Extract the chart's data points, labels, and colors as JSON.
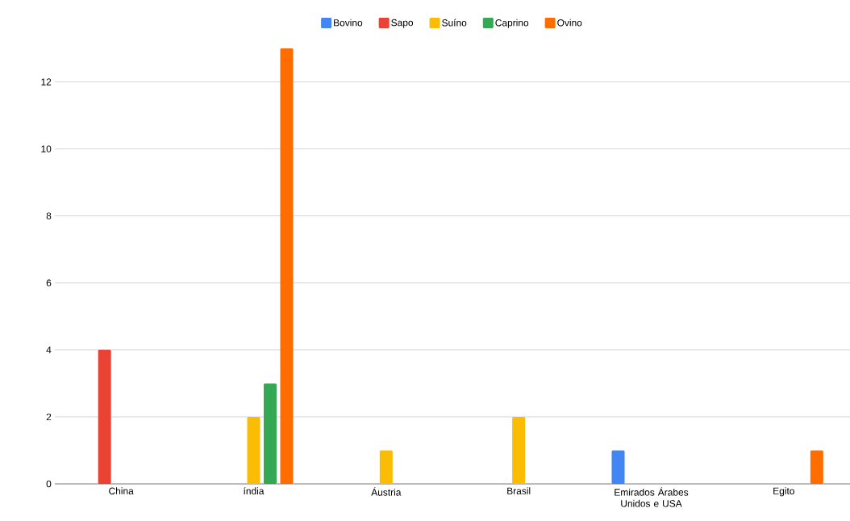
{
  "chart_data": {
    "type": "bar",
    "categories": [
      "China",
      "índia",
      "Áustria",
      "Brasil",
      "Emirados Árabes Unidos e USA",
      "Egito"
    ],
    "series": [
      {
        "name": "Bovino",
        "color": "#4285f4",
        "values": [
          null,
          null,
          null,
          null,
          1,
          null
        ]
      },
      {
        "name": "Sapo",
        "color": "#ea4335",
        "values": [
          4,
          null,
          null,
          null,
          null,
          null
        ]
      },
      {
        "name": "Suíno",
        "color": "#fbbc04",
        "values": [
          null,
          2,
          1,
          2,
          null,
          null
        ]
      },
      {
        "name": "Caprino",
        "color": "#34a853",
        "values": [
          null,
          3,
          null,
          null,
          null,
          null
        ]
      },
      {
        "name": "Ovino",
        "color": "#ff6d01",
        "values": [
          null,
          13,
          null,
          null,
          null,
          1
        ]
      }
    ],
    "ylim": [
      0,
      13
    ],
    "yticks": [
      0,
      2,
      4,
      6,
      8,
      10,
      12
    ],
    "grid": "y",
    "legend": "top"
  }
}
